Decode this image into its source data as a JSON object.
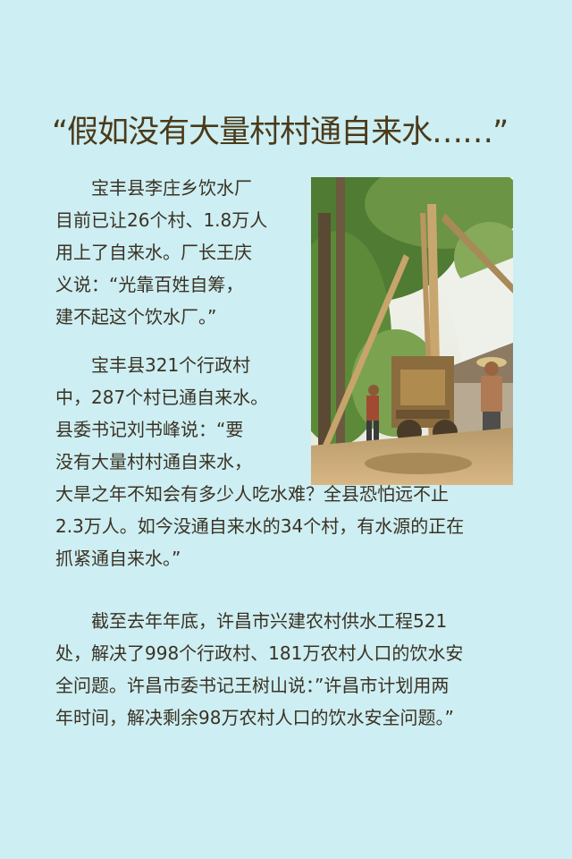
{
  "title": "“假如没有大量村村通自来水……”",
  "photo": {
    "description_icon": "well-drilling-photo",
    "colors": {
      "sky": "#f1f3ef",
      "foliage": "#5e8a3c",
      "ground": "#c9a874"
    }
  },
  "paragraph1": [
    "　　宝丰县李庄乡饮水厂",
    "目前已让26个村、1.8万人",
    "用上了自来水。厂长王庆",
    "义说：“光靠百姓自筹，",
    "建不起这个饮水厂。”"
  ],
  "paragraph2": [
    "　　宝丰县321个行政村",
    "中，287个村已通自来水。",
    "县委书记刘书峰说：“要",
    "没有大量村村通自来水，",
    "大旱之年不知会有多少人吃水难？全县恐怕远不止",
    "2.3万人。如今没通自来水的34个村，有水源的正在",
    "抓紧通自来水。”"
  ],
  "paragraph3": [
    "　　截至去年年底，许昌市兴建农村供水工程521",
    "处，解决了998个行政村、181万农村人口的饮水安",
    "全问题。许昌市委书记王树山说：”许昌市计划用两",
    "年时间，解决剩余98万农村人口的饮水安全问题。”"
  ]
}
